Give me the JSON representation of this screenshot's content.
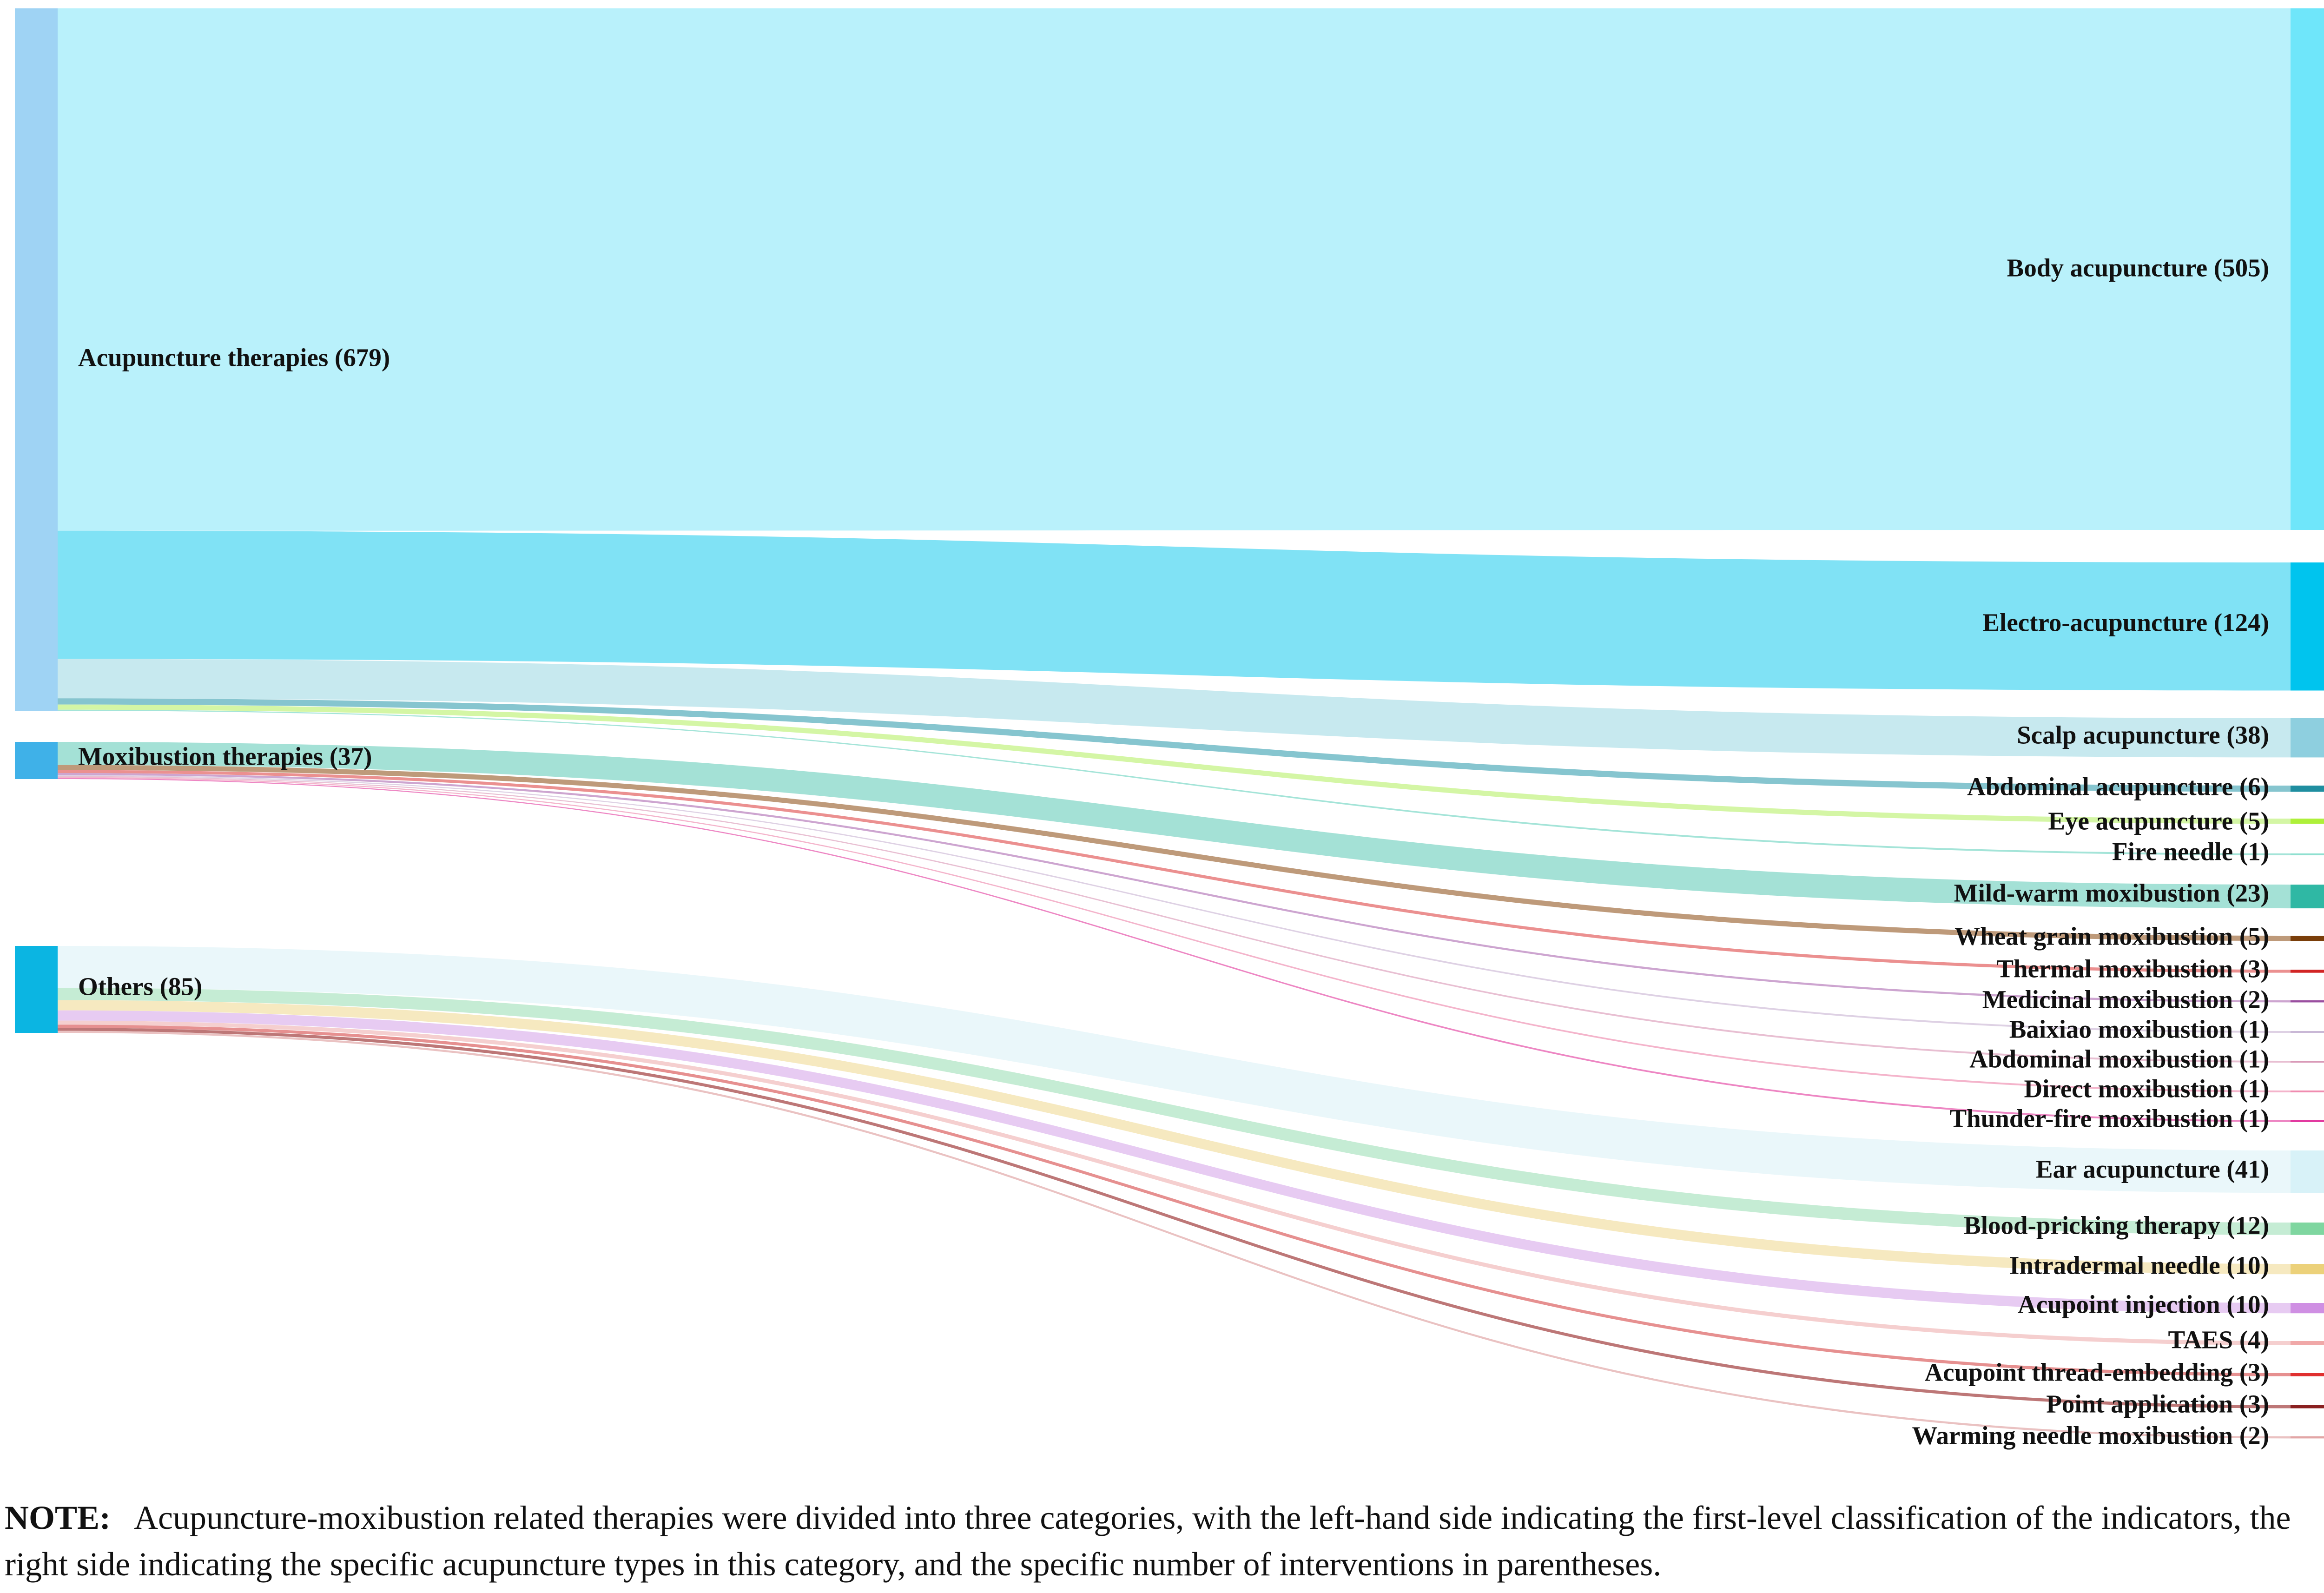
{
  "diagram": {
    "type": "sankey",
    "sources": [
      {
        "id": "acu",
        "label": "Acupuncture therapies (679)",
        "value": 679,
        "color": "#9fd3f4"
      },
      {
        "id": "moxa",
        "label": "Moxibustion therapies (37)",
        "value": 37,
        "color": "#3fb1e8"
      },
      {
        "id": "other",
        "label": "Others (85)",
        "value": 85,
        "color": "#0bb5e2"
      }
    ],
    "targets": [
      {
        "id": "body",
        "label": "Body acupuncture (505)",
        "value": 505,
        "color": "#6fe6fa",
        "flow_color": "#b5f0fb",
        "source": "acu"
      },
      {
        "id": "electro",
        "label": "Electro-acupuncture (124)",
        "value": 124,
        "color": "#00c4ee",
        "flow_color": "#79e0f4",
        "source": "acu"
      },
      {
        "id": "scalp",
        "label": "Scalp acupuncture (38)",
        "value": 38,
        "color": "#8ecfdf",
        "flow_color": "#c4e8ee",
        "source": "acu"
      },
      {
        "id": "abd_acu",
        "label": "Abdominal acupuncture (6)",
        "value": 6,
        "color": "#1f8ea0",
        "flow_color": "#7fc2cc",
        "source": "acu"
      },
      {
        "id": "eye",
        "label": "Eye acupuncture (5)",
        "value": 5,
        "color": "#aef03a",
        "flow_color": "#d2f5a0",
        "source": "acu"
      },
      {
        "id": "fire",
        "label": "Fire needle (1)",
        "value": 1,
        "color": "#8fe0d0",
        "flow_color": "#9fe3d6",
        "source": "acu"
      },
      {
        "id": "mildwarm",
        "label": "Mild-warm moxibustion (23)",
        "value": 23,
        "color": "#2fb8a4",
        "flow_color": "#9fdfd4",
        "source": "moxa"
      },
      {
        "id": "wheat",
        "label": "Wheat grain moxibustion (5)",
        "value": 5,
        "color": "#7a3e0a",
        "flow_color": "#bb9573",
        "source": "moxa"
      },
      {
        "id": "thermal",
        "label": "Thermal moxibustion (3)",
        "value": 3,
        "color": "#d22525",
        "flow_color": "#ea8a8a",
        "source": "moxa"
      },
      {
        "id": "medicinal",
        "label": "Medicinal moxibustion (2)",
        "value": 2,
        "color": "#9a4fa0",
        "flow_color": "#caa0cd",
        "source": "moxa"
      },
      {
        "id": "baixiao",
        "label": "Baixiao moxibustion (1)",
        "value": 1,
        "color": "#c9b8d6",
        "flow_color": "#dccfe3",
        "source": "moxa"
      },
      {
        "id": "abd_moxa",
        "label": "Abdominal moxibustion (1)",
        "value": 1,
        "color": "#d99ab8",
        "flow_color": "#e7bcd0",
        "source": "moxa"
      },
      {
        "id": "direct",
        "label": "Direct moxibustion (1)",
        "value": 1,
        "color": "#f08cb0",
        "flow_color": "#f3b0c8",
        "source": "moxa"
      },
      {
        "id": "thunder",
        "label": "Thunder-fire moxibustion (1)",
        "value": 1,
        "color": "#e23aa0",
        "flow_color": "#ec7fc0",
        "source": "moxa"
      },
      {
        "id": "ear",
        "label": "Ear acupuncture (41)",
        "value": 41,
        "color": "#d8f2f8",
        "flow_color": "#e9f7fa",
        "source": "other"
      },
      {
        "id": "bloodprick",
        "label": "Blood-pricking therapy (12)",
        "value": 12,
        "color": "#7fd6a0",
        "flow_color": "#c2ebd2",
        "source": "other"
      },
      {
        "id": "intradermal",
        "label": "Intradermal needle (10)",
        "value": 10,
        "color": "#ecd17a",
        "flow_color": "#f5e8bd",
        "source": "other"
      },
      {
        "id": "injection",
        "label": "Acupoint injection (10)",
        "value": 10,
        "color": "#cf8fe3",
        "flow_color": "#e6c8f1",
        "source": "other"
      },
      {
        "id": "taes",
        "label": "TAES (4)",
        "value": 4,
        "color": "#f0a8a8",
        "flow_color": "#f4cccc",
        "source": "other"
      },
      {
        "id": "thread",
        "label": "Acupoint thread-embedding (3)",
        "value": 3,
        "color": "#e03030",
        "flow_color": "#e58a8a",
        "source": "other"
      },
      {
        "id": "pointapp",
        "label": "Point application (3)",
        "value": 3,
        "color": "#8a2020",
        "flow_color": "#b97070",
        "source": "other"
      },
      {
        "id": "warmneedle",
        "label": "Warming needle moxibustion (2)",
        "value": 2,
        "color": "#e2a6a6",
        "flow_color": "#e9bfbf",
        "source": "other"
      }
    ]
  },
  "note": {
    "label": "NOTE:",
    "text": "Acupuncture-moxibustion related therapies were divided into three categories, with the left-hand side indicating the first-level classification of the indicators, the right side indicating the specific acupuncture types in this category, and the specific number of interventions in parentheses."
  }
}
